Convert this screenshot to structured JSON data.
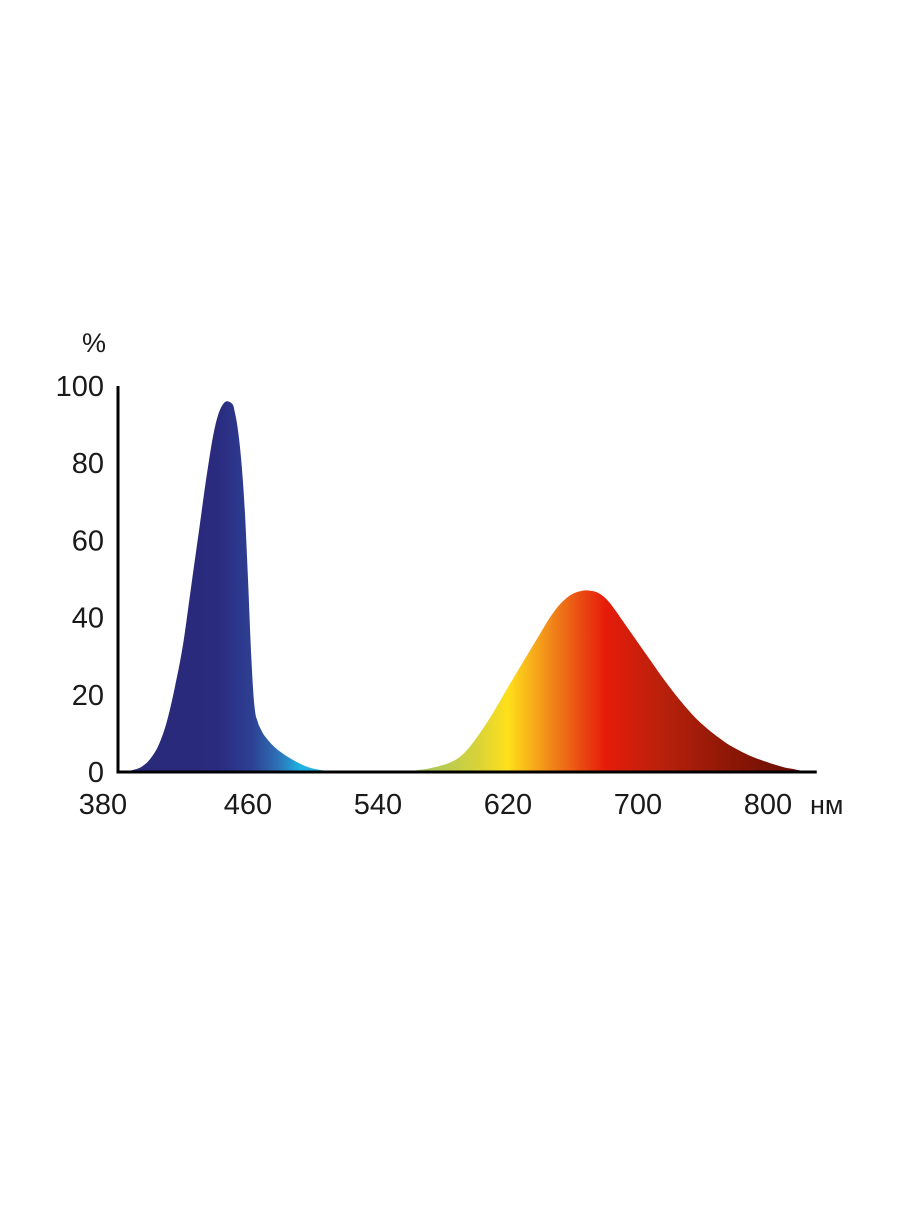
{
  "chart_data": {
    "type": "area",
    "title": "",
    "ylabel": "%",
    "xunit": "нм",
    "xlim": [
      380,
      810
    ],
    "ylim": [
      0,
      100
    ],
    "grid": false,
    "x_ticks": [
      380,
      460,
      540,
      620,
      700,
      800
    ],
    "y_ticks": [
      0,
      20,
      40,
      60,
      80,
      100
    ],
    "colors": {
      "axis": "#000000",
      "text": "#1a1a1a",
      "gradient": [
        {
          "wavelength": 380,
          "color": "#2a2a78"
        },
        {
          "wavelength": 440,
          "color": "#2a2a7e"
        },
        {
          "wavelength": 462,
          "color": "#2d3f92"
        },
        {
          "wavelength": 478,
          "color": "#2d6fb5"
        },
        {
          "wavelength": 492,
          "color": "#1fb0e2"
        },
        {
          "wavelength": 515,
          "color": "#2fb8d8"
        },
        {
          "wavelength": 560,
          "color": "#9cc46a"
        },
        {
          "wavelength": 600,
          "color": "#d6d23a"
        },
        {
          "wavelength": 620,
          "color": "#ffe01a"
        },
        {
          "wavelength": 645,
          "color": "#f28c1a"
        },
        {
          "wavelength": 665,
          "color": "#ea4a12"
        },
        {
          "wavelength": 680,
          "color": "#e61c0a"
        },
        {
          "wavelength": 715,
          "color": "#b8210b"
        },
        {
          "wavelength": 760,
          "color": "#8a1606"
        },
        {
          "wavelength": 810,
          "color": "#5c0a04"
        }
      ]
    },
    "series": [
      {
        "x": [
          380,
          385,
          390,
          395,
          400,
          405,
          410,
          415,
          420,
          425,
          430,
          435,
          440,
          445,
          450,
          452,
          454,
          456,
          458,
          460,
          462,
          464,
          466,
          468,
          470,
          475,
          480,
          485,
          490,
          495,
          500,
          505,
          510,
          515,
          520,
          525,
          530,
          540,
          550,
          560,
          570,
          580,
          585,
          590,
          595,
          600,
          605,
          610,
          615,
          620,
          625,
          630,
          635,
          640,
          645,
          650,
          655,
          660,
          665,
          670,
          675,
          680,
          685,
          690,
          695,
          700,
          705,
          710,
          715,
          720,
          725,
          730,
          735,
          740,
          745,
          750,
          755,
          760,
          765,
          770,
          775,
          780,
          785,
          790,
          795,
          800,
          805,
          810
        ],
        "y": [
          0,
          0.2,
          0.6,
          1.5,
          3.5,
          7,
          13,
          22,
          33,
          48,
          63,
          78,
          90,
          95.5,
          95.5,
          93,
          88,
          80,
          68,
          50,
          30,
          17,
          13,
          11,
          9.5,
          7,
          5.2,
          3.8,
          2.6,
          1.6,
          0.9,
          0.5,
          0.3,
          0.2,
          0.15,
          0.1,
          0.1,
          0.1,
          0.1,
          0.3,
          0.8,
          1.8,
          2.6,
          3.8,
          5.8,
          8.5,
          11.5,
          14.8,
          18.3,
          22,
          25.5,
          29,
          32.5,
          36,
          39.5,
          42.5,
          44.7,
          46.2,
          46.9,
          47,
          46.5,
          45,
          42.5,
          39.5,
          36.5,
          33.5,
          30.5,
          27.5,
          24.5,
          21.7,
          19,
          16.5,
          14.2,
          12.2,
          10.4,
          8.8,
          7.3,
          6.1,
          5,
          4,
          3.2,
          2.5,
          1.8,
          1.2,
          0.8,
          0.4,
          0.15,
          0
        ]
      }
    ]
  }
}
